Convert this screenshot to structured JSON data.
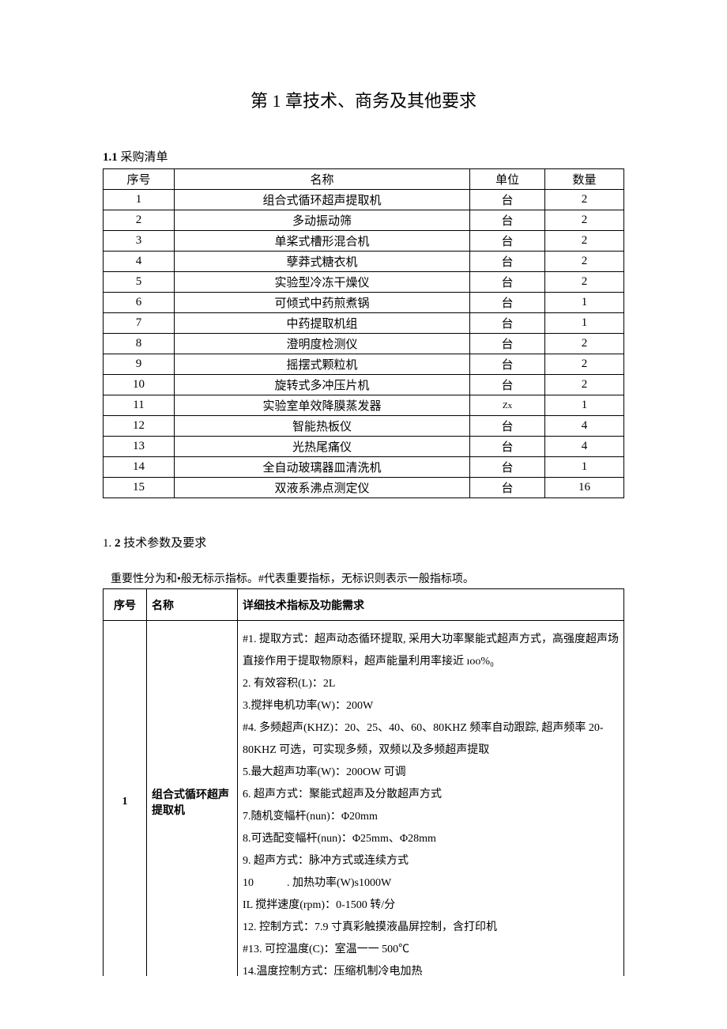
{
  "title": "第 1 章技术、商务及其他要求",
  "section1_prefix": "1.1",
  "section1_text": " 采购清单",
  "section2_text": "1. ",
  "section2_bold": "2",
  "section2_suffix": " 技术参数及要求",
  "note": "重要性分为和•般无标示指标。#代表重要指标，无标识则表示一般指标项。",
  "table1": {
    "headers": {
      "seq": "序号",
      "name": "名称",
      "unit": "单位",
      "qty": "数量"
    },
    "rows": [
      {
        "seq": "1",
        "name": "组合式循环超声提取机",
        "unit": "台",
        "qty": "2"
      },
      {
        "seq": "2",
        "name": "多动振动筛",
        "unit": "台",
        "qty": "2"
      },
      {
        "seq": "3",
        "name": "单桨式槽形混合机",
        "unit": "台",
        "qty": "2"
      },
      {
        "seq": "4",
        "name": "孽莽式糖衣机",
        "unit": "台",
        "qty": "2"
      },
      {
        "seq": "5",
        "name": "实验型冷冻干燥仪",
        "unit": "台",
        "qty": "2"
      },
      {
        "seq": "6",
        "name": "可倾式中药煎煮锅",
        "unit": "台",
        "qty": "1"
      },
      {
        "seq": "7",
        "name": "中药提取机组",
        "unit": "台",
        "qty": "1"
      },
      {
        "seq": "8",
        "name": "澄明度检测仪",
        "unit": "台",
        "qty": "2"
      },
      {
        "seq": "9",
        "name": "摇摆式颗粒机",
        "unit": "台",
        "qty": "2"
      },
      {
        "seq": "10",
        "name": "旋转式多冲压片机",
        "unit": "台",
        "qty": "2"
      },
      {
        "seq": "11",
        "name": "实验室单效降膜蒸发器",
        "unit": "Zx",
        "qty": "1",
        "unit_small": true
      },
      {
        "seq": "12",
        "name": "智能热板仪",
        "unit": "台",
        "qty": "4"
      },
      {
        "seq": "13",
        "name": "光热尾痛仪",
        "unit": "台",
        "qty": "4"
      },
      {
        "seq": "14",
        "name": "全自动玻璃器皿清洗机",
        "unit": "台",
        "qty": "1"
      },
      {
        "seq": "15",
        "name": "双液系沸点测定仪",
        "unit": "台",
        "qty": "16"
      }
    ]
  },
  "table2": {
    "headers": {
      "seq": "序号",
      "name": "名称",
      "detail": "详细技术指标及功能需求"
    },
    "rows": [
      {
        "seq": "1",
        "name": "组合式循环超声提取机",
        "details": [
          "#1. 提取方式：超声动态循环提取, 采用大功率聚能式超声方式，高强度超声场直接作用于提取物原料，超声能量利用率接近 ıoo%₀",
          "2. 有效容积(L)：2L",
          "3.搅拌电机功率(W)：200W",
          "#4. 多频超声(KHZ)：20、25、40、60、80KHZ 频率自动跟踪, 超声频率 20-80KHZ 可选，可实现多频，双频以及多频超声提取",
          "5.最大超声功率(W)：200OW 可调",
          "6. 超声方式：聚能式超声及分散超声方式",
          "7.随机变幅杆(nun)：Φ20mm",
          "8.可选配变幅杆(nun)：Φ25mm、Φ28mm",
          "9. 超声方式：脉冲方式或连续方式",
          "10　　　. 加热功率(W)s1000W",
          "IL 搅拌速度(rpm)：0-1500 转/分",
          "12. 控制方式：7.9 寸真彩触摸液晶屏控制，含打印机",
          "#13. 可控温度(C)：室温一一 500℃",
          "14.温度控制方式：压缩机制冷电加热"
        ]
      }
    ]
  },
  "colors": {
    "text": "#000000",
    "background": "#ffffff",
    "border": "#000000"
  },
  "typography": {
    "title_fontsize": 22,
    "body_fontsize": 15,
    "detail_fontsize": 14,
    "font_family": "SimSun"
  }
}
